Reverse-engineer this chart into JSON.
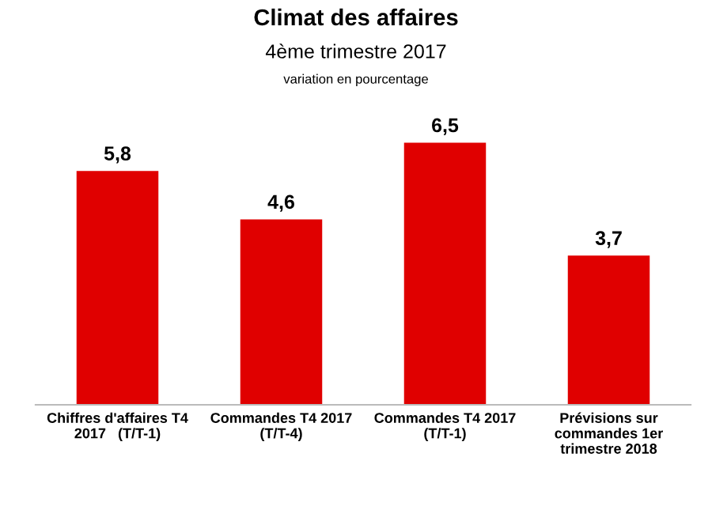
{
  "chart_data": {
    "type": "bar",
    "title": "Climat des affaires",
    "subtitle": "4ème trimestre 2017",
    "annotations": [
      "variation en pourcentage"
    ],
    "categories": [
      "Chiffres d'affaires T4\n2017   (T/T-1)",
      "Commandes T4 2017\n(T/T-4)",
      "Commandes T4 2017\n(T/T-1)",
      "Prévisions sur\ncommandes 1er\ntrimestre 2018"
    ],
    "values": [
      5.8,
      4.6,
      6.5,
      3.7
    ],
    "value_labels": [
      "5,8",
      "4,6",
      "6,5",
      "3,7"
    ],
    "color": "#e00000",
    "grid": false,
    "legend": false
  }
}
